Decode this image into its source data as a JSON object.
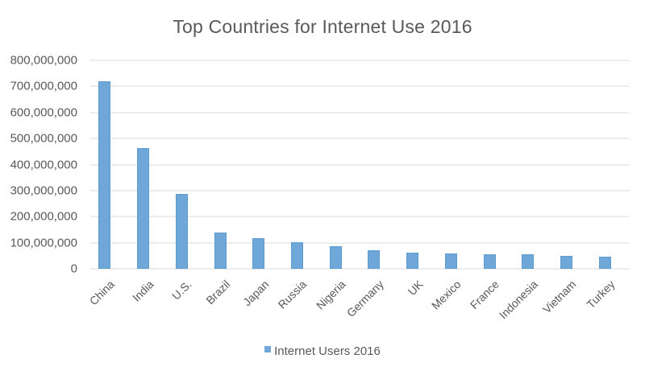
{
  "chart_data": {
    "type": "bar",
    "title": "Top Countries for Internet Use 2016",
    "xlabel": "",
    "ylabel": "",
    "categories": [
      "China",
      "India",
      "U.S.",
      "Brazil",
      "Japan",
      "Russia",
      "Nigeria",
      "Germany",
      "UK",
      "Mexico",
      "France",
      "Indonesia",
      "Vietnam",
      "Turkey"
    ],
    "series": [
      {
        "name": "Internet Users 2016",
        "color": "#6fa8d8",
        "values": [
          721000000,
          462000000,
          287000000,
          139000000,
          117000000,
          102000000,
          86000000,
          71000000,
          62000000,
          59000000,
          56000000,
          55000000,
          49000000,
          46000000
        ]
      }
    ],
    "ylim": [
      0,
      800000000
    ],
    "y_ticks": [
      "0",
      "100,000,000",
      "200,000,000",
      "300,000,000",
      "400,000,000",
      "500,000,000",
      "600,000,000",
      "700,000,000",
      "800,000,000"
    ],
    "grid": true,
    "legend_position": "bottom"
  },
  "title": "Top Countries for Internet Use 2016",
  "legend": {
    "label": "Internet Users 2016"
  }
}
